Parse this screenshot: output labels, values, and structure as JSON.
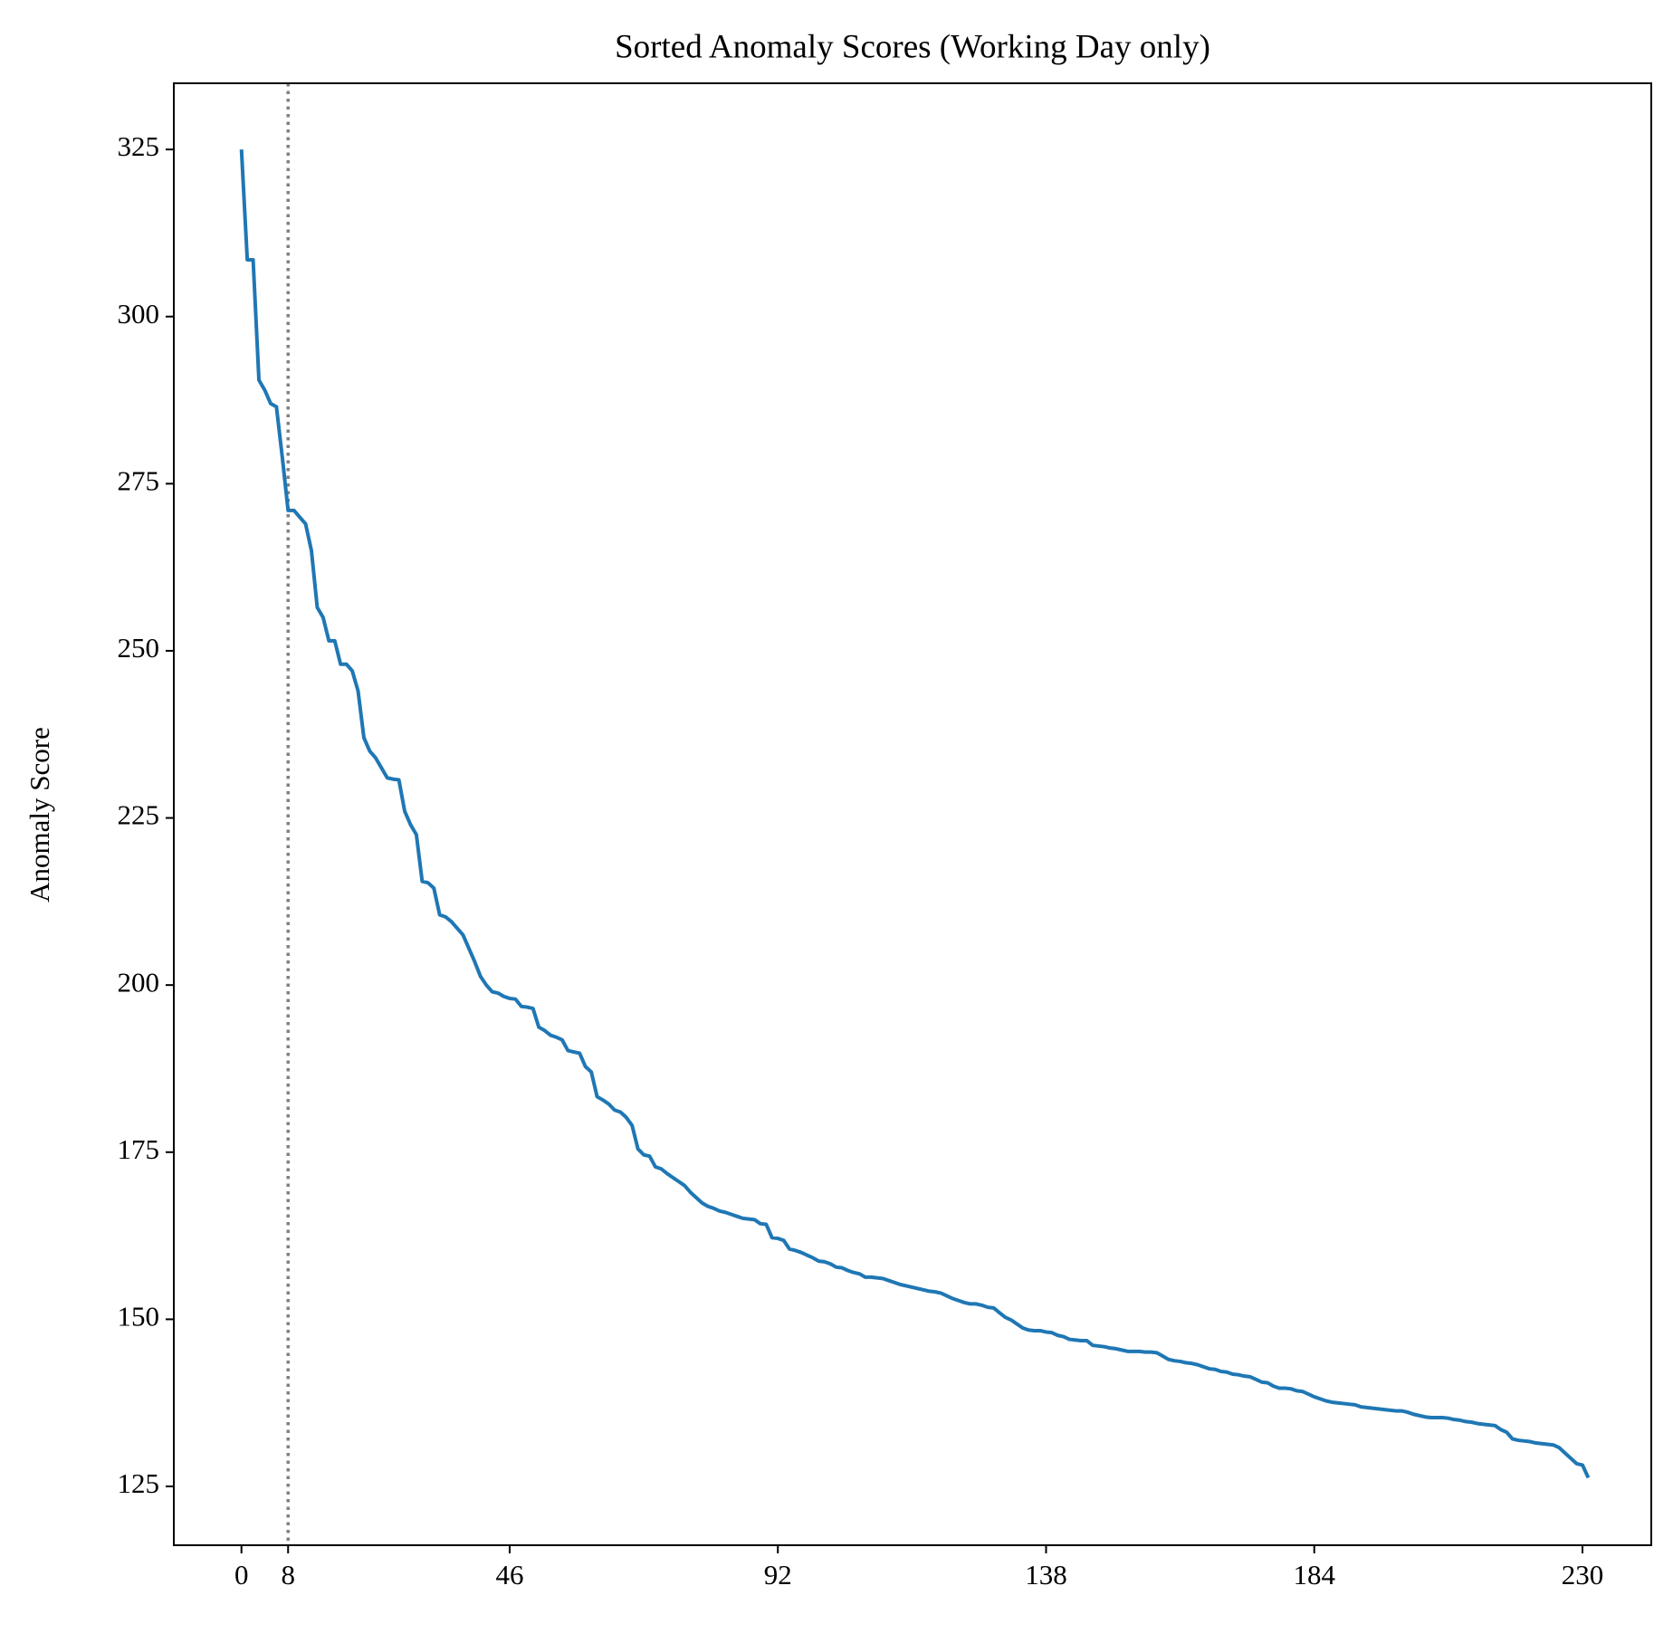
{
  "chart_data": {
    "type": "line",
    "title": "Sorted Anomaly Scores (Working Day only)",
    "y_label": "Anomaly Score",
    "x": [
      0,
      1,
      2,
      3,
      4,
      5,
      6,
      7,
      8,
      9,
      10,
      11,
      12,
      13,
      14,
      15,
      16,
      17,
      18,
      19,
      20,
      21,
      22,
      23,
      24,
      25,
      26,
      27,
      28,
      29,
      30,
      31,
      32,
      33,
      34,
      35,
      36,
      37,
      38,
      39,
      40,
      41,
      42,
      43,
      44,
      45,
      46,
      47,
      48,
      49,
      50,
      51,
      52,
      53,
      54,
      55,
      56,
      57,
      58,
      59,
      60,
      61,
      62,
      63,
      64,
      65,
      66,
      67,
      68,
      69,
      70,
      71,
      72,
      73,
      74,
      75,
      76,
      77,
      78,
      79,
      80,
      81,
      82,
      83,
      84,
      85,
      86,
      87,
      88,
      89,
      90,
      91,
      92,
      93,
      94,
      95,
      96,
      97,
      98,
      99,
      100,
      101,
      102,
      103,
      104,
      105,
      106,
      107,
      108,
      109,
      110,
      111,
      112,
      113,
      114,
      115,
      116,
      117,
      118,
      119,
      120,
      121,
      122,
      123,
      124,
      125,
      126,
      127,
      128,
      129,
      130,
      131,
      132,
      133,
      134,
      135,
      136,
      137,
      138,
      139,
      140,
      141,
      142,
      143,
      144,
      145,
      146,
      147,
      148,
      149,
      150,
      151,
      152,
      153,
      154,
      155,
      156,
      157,
      158,
      159,
      160,
      161,
      162,
      163,
      164,
      165,
      166,
      167,
      168,
      169,
      170,
      171,
      172,
      173,
      174,
      175,
      176,
      177,
      178,
      179,
      180,
      181,
      182,
      183,
      184,
      185,
      186,
      187,
      188,
      189,
      190,
      191,
      192,
      193,
      194,
      195,
      196,
      197,
      198,
      199,
      200,
      201,
      202,
      203,
      204,
      205,
      206,
      207,
      208,
      209,
      210,
      211,
      212,
      213,
      214,
      215,
      216,
      217,
      218,
      219,
      220,
      221,
      222,
      223,
      224,
      225,
      226,
      227,
      228,
      229,
      230,
      231
    ],
    "series": [
      {
        "name": "Anomaly Score",
        "color": "#1f77b4",
        "values": [
          325,
          308.5,
          308.5,
          290.5,
          289,
          287,
          286.5,
          279,
          271,
          271,
          270,
          269,
          265,
          256.5,
          255,
          251.5,
          251.5,
          248,
          248,
          247,
          244,
          237,
          235,
          234,
          232.5,
          231,
          230.8,
          230.7,
          226,
          224,
          222.5,
          215.5,
          215.3,
          214.5,
          210.5,
          210.2,
          209.5,
          208.5,
          207.5,
          205.5,
          203.5,
          201.3,
          200,
          199,
          198.8,
          198.3,
          198,
          197.9,
          196.8,
          196.7,
          196.5,
          193.7,
          193.2,
          192.5,
          192.2,
          191.8,
          190.2,
          190,
          189.8,
          187.8,
          187,
          183.3,
          182.8,
          182.2,
          181.3,
          181,
          180.2,
          179,
          175.5,
          174.6,
          174.4,
          172.8,
          172.5,
          171.8,
          171.2,
          170.6,
          170,
          169,
          168.2,
          167.4,
          166.9,
          166.6,
          166.2,
          166,
          165.7,
          165.4,
          165.1,
          165,
          164.9,
          164.3,
          164.2,
          162.2,
          162.1,
          161.8,
          160.5,
          160.3,
          160,
          159.6,
          159.2,
          158.7,
          158.6,
          158.3,
          157.8,
          157.7,
          157.3,
          157,
          156.8,
          156.3,
          156.3,
          156.2,
          156.1,
          155.8,
          155.5,
          155.2,
          155,
          154.8,
          154.6,
          154.4,
          154.2,
          154.1,
          153.9,
          153.5,
          153.1,
          152.8,
          152.5,
          152.3,
          152.3,
          152.1,
          151.8,
          151.7,
          151,
          150.3,
          149.9,
          149.3,
          148.7,
          148.4,
          148.3,
          148.3,
          148.1,
          148,
          147.6,
          147.4,
          147,
          146.9,
          146.8,
          146.8,
          146.1,
          146,
          145.9,
          145.7,
          145.6,
          145.4,
          145.2,
          145.2,
          145.2,
          145.1,
          145.1,
          145,
          144.5,
          144,
          143.8,
          143.7,
          143.5,
          143.4,
          143.2,
          142.9,
          142.6,
          142.5,
          142.2,
          142.1,
          141.8,
          141.7,
          141.5,
          141.4,
          141,
          140.6,
          140.5,
          140,
          139.7,
          139.7,
          139.6,
          139.3,
          139.2,
          138.8,
          138.4,
          138.1,
          137.8,
          137.6,
          137.5,
          137.4,
          137.3,
          137.2,
          136.9,
          136.8,
          136.7,
          136.6,
          136.5,
          136.4,
          136.3,
          136.3,
          136.1,
          135.8,
          135.6,
          135.4,
          135.3,
          135.3,
          135.3,
          135.2,
          135,
          134.9,
          134.7,
          134.6,
          134.4,
          134.3,
          134.2,
          134.1,
          133.5,
          133.1,
          132.1,
          131.9,
          131.8,
          131.7,
          131.5,
          131.4,
          131.3,
          131.2,
          130.8,
          130,
          129.2,
          128.4,
          128.2,
          126.3
        ]
      }
    ],
    "vline": {
      "x": 8,
      "color": "#808080"
    },
    "xlim": [
      -11.6,
      241.8
    ],
    "ylim": [
      116.2,
      334.9
    ],
    "xticks": [
      0,
      8,
      46,
      92,
      138,
      184,
      230
    ],
    "yticks": [
      125,
      150,
      175,
      200,
      225,
      250,
      275,
      300,
      325
    ],
    "grid": false
  }
}
